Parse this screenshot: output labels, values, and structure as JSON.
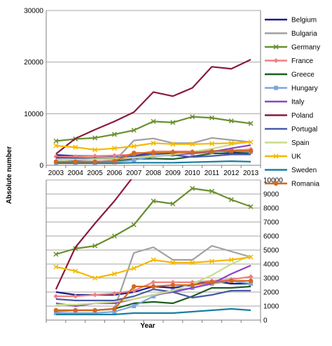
{
  "chart_data": {
    "type": "line",
    "title": "",
    "ylabel": "Absolute number",
    "xlabel": "Year",
    "x": [
      2003,
      2004,
      2005,
      2006,
      2007,
      2008,
      2009,
      2010,
      2011,
      2012,
      2013
    ],
    "grid": true,
    "legend_position": "right",
    "panels": [
      {
        "id": "top",
        "ylim": [
          0,
          30000
        ],
        "yticks": [
          0,
          10000,
          20000,
          30000
        ],
        "ytick_side": "left",
        "xlabels_shown": true
      },
      {
        "id": "bottom",
        "ylim": [
          0,
          10000
        ],
        "yticks": [
          0,
          1000,
          2000,
          3000,
          4000,
          5000,
          6000,
          7000,
          8000,
          9000,
          10000
        ],
        "ytick_side": "right",
        "xlabels_shown": false
      }
    ],
    "series": [
      {
        "name": "Belgium",
        "color": "#1a1a8c",
        "marker": "none",
        "values": [
          2000,
          1800,
          1800,
          1800,
          2000,
          2400,
          2300,
          2500,
          2800,
          2600,
          2600
        ]
      },
      {
        "name": "Bulgaria",
        "color": "#a0a0a0",
        "marker": "none",
        "values": [
          600,
          700,
          700,
          800,
          4800,
          5200,
          4300,
          4300,
          5300,
          4900,
          4500
        ]
      },
      {
        "name": "Germany",
        "color": "#6a8f2e",
        "marker": "x",
        "values": [
          4700,
          5100,
          5300,
          6000,
          6800,
          8500,
          8300,
          9400,
          9200,
          8600,
          8100
        ]
      },
      {
        "name": "France",
        "color": "#f08080",
        "marker": "diamond",
        "values": [
          1700,
          1700,
          1800,
          1900,
          2100,
          2700,
          2700,
          2700,
          2800,
          2900,
          3100
        ]
      },
      {
        "name": "Greece",
        "color": "#1f5c1f",
        "marker": "none",
        "values": [
          700,
          700,
          700,
          800,
          1200,
          1300,
          1200,
          1700,
          2300,
          2300,
          2400
        ]
      },
      {
        "name": "Hungary",
        "color": "#7ea6dc",
        "marker": "square",
        "values": [
          500,
          500,
          500,
          600,
          1000,
          1700,
          2100,
          2300,
          2600,
          2800,
          2600
        ]
      },
      {
        "name": "Italy",
        "color": "#8e44c4",
        "marker": "none",
        "values": [
          1200,
          1000,
          1200,
          1200,
          1500,
          1800,
          2000,
          2300,
          2600,
          3300,
          3900
        ]
      },
      {
        "name": "Poland",
        "color": "#8b1a3a",
        "marker": "none",
        "values": [
          2200,
          5200,
          6900,
          8500,
          10300,
          14200,
          13400,
          15000,
          19100,
          18700,
          20500
        ]
      },
      {
        "name": "Portugal",
        "color": "#4a5aa8",
        "marker": "none",
        "values": [
          1500,
          1400,
          1400,
          1400,
          1700,
          2200,
          2000,
          1600,
          1800,
          2100,
          2100
        ]
      },
      {
        "name": "Spain",
        "color": "#c8dc8c",
        "marker": "none",
        "values": [
          1100,
          1100,
          1200,
          1300,
          1500,
          1800,
          2100,
          2600,
          3200,
          4000,
          4600
        ]
      },
      {
        "name": "UK",
        "color": "#f5b800",
        "marker": "x",
        "values": [
          3800,
          3500,
          3000,
          3300,
          3700,
          4300,
          4100,
          4100,
          4200,
          4300,
          4500
        ]
      },
      {
        "name": "Sweden",
        "color": "#1a7fa0",
        "marker": "none",
        "values": [
          400,
          400,
          400,
          400,
          500,
          500,
          500,
          600,
          700,
          800,
          700
        ]
      },
      {
        "name": "Romania",
        "color": "#d2691e",
        "marker": "circle",
        "values": [
          700,
          700,
          700,
          800,
          2400,
          2400,
          2500,
          2500,
          2700,
          2800,
          2800
        ]
      }
    ]
  }
}
